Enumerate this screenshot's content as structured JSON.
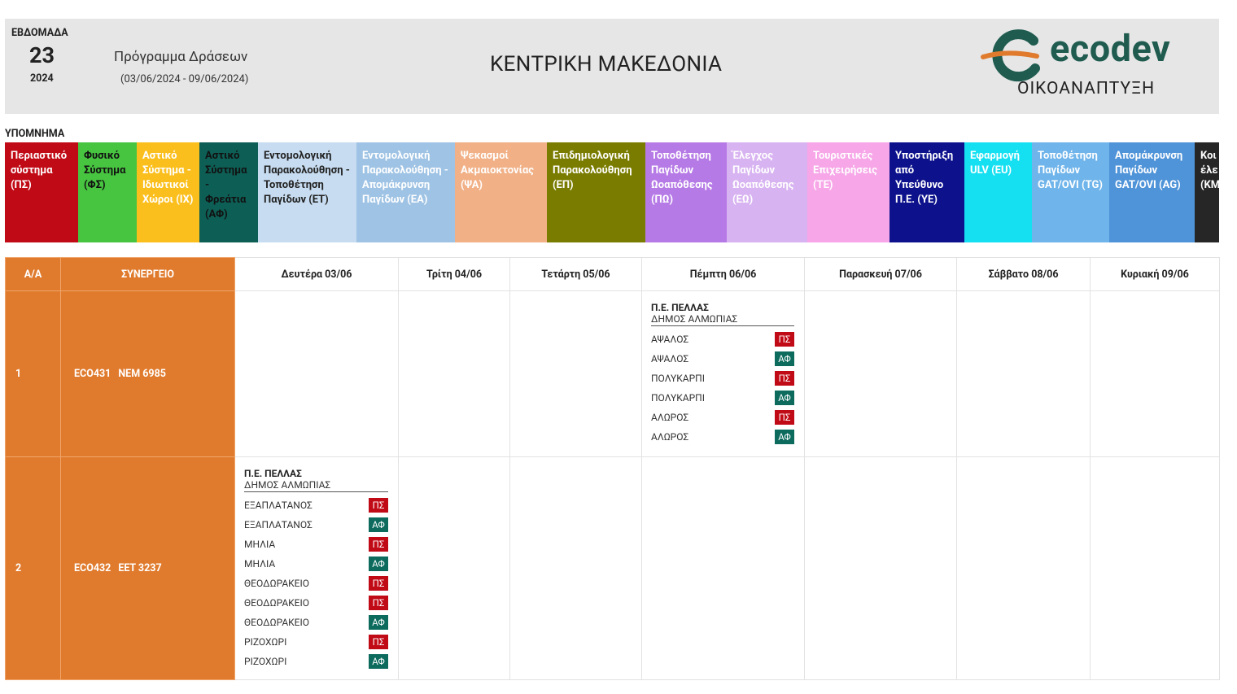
{
  "header": {
    "week_label": "ΕΒΔΟΜΑΔΑ",
    "week_number": "23",
    "year": "2024",
    "program_title": "Πρόγραμμα Δράσεων",
    "program_dates": "(03/06/2024 - 09/06/2024)",
    "region": "ΚΕΝΤΡΙΚΗ ΜΑΚΕΔΟΝΙΑ",
    "brand": "ecodev",
    "brand_subtitle": "ΟΙΚΟΑΝΑΠΤΥΞΗ"
  },
  "legend_title": "ΥΠΟΜΝΗΜΑ",
  "legend": [
    {
      "text": "Περιαστικό σύστημα (ΠΣ)",
      "bg": "#c00a16",
      "fg": "#ffffff"
    },
    {
      "text": "Φυσικό Σύστημα (ΦΣ)",
      "bg": "#47c440",
      "fg": "#111111"
    },
    {
      "text": "Αστικό Σύστημα - Ιδιωτικοί Χώροι (ΙΧ)",
      "bg": "#fbbf1d",
      "fg": "#ffffff"
    },
    {
      "text": "Αστικό Σύστημα - Φρεάτια (ΑΦ)",
      "bg": "#0d5e55",
      "fg": "#111111"
    },
    {
      "text": "Εντομολογική Παρακολούθηση - Τοποθέτηση Παγίδων (ΕΤ)",
      "bg": "#c7dcf0",
      "fg": "#222222"
    },
    {
      "text": "Εντομολογική Παρακολούθηση - Απομάκρυνση Παγίδων (ΕΑ)",
      "bg": "#9fc3e4",
      "fg": "#ffffff"
    },
    {
      "text": "Ψεκασμοί Ακμαιοκτονίας (ΨΑ)",
      "bg": "#f1b086",
      "fg": "#ffffff"
    },
    {
      "text": "Επιδημιολογική Παρακολούθηση (ΕΠ)",
      "bg": "#7a7c00",
      "fg": "#ffffff"
    },
    {
      "text": "Τοποθέτηση Παγίδων Ωοαπόθεσης (ΠΩ)",
      "bg": "#b67ae6",
      "fg": "#ffffff"
    },
    {
      "text": "Έλεγχος Παγίδων Ωοαπόθεσης (ΕΩ)",
      "bg": "#d8b3f1",
      "fg": "#ffffff"
    },
    {
      "text": "Τουριστικές Επιχειρήσεις (ΤΕ)",
      "bg": "#f7a6e8",
      "fg": "#ffffff"
    },
    {
      "text": "Υποστήριξη από Υπεύθυνο Π.Ε. (ΥΕ)",
      "bg": "#0d128c",
      "fg": "#ffffff"
    },
    {
      "text": "Εφαρμογή ULV (EU)",
      "bg": "#15e0f2",
      "fg": "#ffffff"
    },
    {
      "text": "Τοποθέτηση Παγίδων GAT/OVI (TG)",
      "bg": "#6fb4ea",
      "fg": "#ffffff"
    },
    {
      "text": "Απομάκρυνση Παγίδων GAT/OVI (AG)",
      "bg": "#4f93d8",
      "fg": "#ffffff"
    },
    {
      "text": "Κοι έλε (ΚΜ",
      "bg": "#262626",
      "fg": "#ffffff"
    }
  ],
  "tag_colors": {
    "ΠΣ": "#c00a16",
    "ΑΦ": "#0d6b5e"
  },
  "table": {
    "col_aa": "Α/Α",
    "col_crew": "ΣΥΝΕΡΓΕΙΟ",
    "days": [
      "Δευτέρα 03/06",
      "Τρίτη 04/06",
      "Τετάρτη 05/06",
      "Πέμπτη 06/06",
      "Παρασκευή 07/06",
      "Σάββατο 08/06",
      "Κυριακή 09/06"
    ],
    "rows": [
      {
        "aa": "1",
        "crew_code": "ECO431",
        "crew_plate": "ΝΕΜ 6985",
        "cells": [
          null,
          null,
          null,
          {
            "pe": "Π.Ε. ΠΕΛΛΑΣ",
            "dimos": "ΔΗΜΟΣ ΑΛΜΩΠΙΑΣ",
            "items": [
              {
                "place": "ΑΨΑΛΟΣ",
                "tag": "ΠΣ"
              },
              {
                "place": "ΑΨΑΛΟΣ",
                "tag": "ΑΦ"
              },
              {
                "place": "ΠΟΛΥΚΑΡΠΙ",
                "tag": "ΠΣ"
              },
              {
                "place": "ΠΟΛΥΚΑΡΠΙ",
                "tag": "ΑΦ"
              },
              {
                "place": "ΑΛΩΡΟΣ",
                "tag": "ΠΣ"
              },
              {
                "place": "ΑΛΩΡΟΣ",
                "tag": "ΑΦ"
              }
            ]
          },
          null,
          null,
          null
        ]
      },
      {
        "aa": "2",
        "crew_code": "ECO432",
        "crew_plate": "ΕΕΤ 3237",
        "cells": [
          {
            "pe": "Π.Ε. ΠΕΛΛΑΣ",
            "dimos": "ΔΗΜΟΣ ΑΛΜΩΠΙΑΣ",
            "items": [
              {
                "place": "ΕΞΑΠΛΑΤΑΝΟΣ",
                "tag": "ΠΣ"
              },
              {
                "place": "ΕΞΑΠΛΑΤΑΝΟΣ",
                "tag": "ΑΦ"
              },
              {
                "place": "ΜΗΛΙΑ",
                "tag": "ΠΣ"
              },
              {
                "place": "ΜΗΛΙΑ",
                "tag": "ΑΦ"
              },
              {
                "place": "ΘΕΟΔΩΡΑΚΕΙΟ",
                "tag": "ΠΣ"
              },
              {
                "place": "ΘΕΟΔΩΡΑΚΕΙΟ",
                "tag": "ΠΣ"
              },
              {
                "place": "ΘΕΟΔΩΡΑΚΕΙΟ",
                "tag": "ΑΦ"
              },
              {
                "place": "ΡΙΖΟΧΩΡΙ",
                "tag": "ΠΣ"
              },
              {
                "place": "ΡΙΖΟΧΩΡΙ",
                "tag": "ΑΦ"
              }
            ]
          },
          null,
          null,
          null,
          null,
          null,
          null
        ]
      }
    ]
  }
}
